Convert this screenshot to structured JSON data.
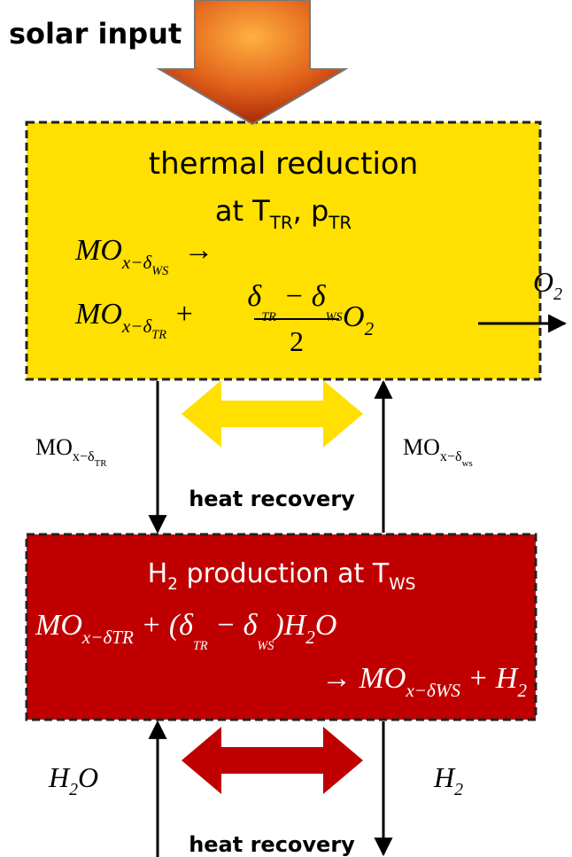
{
  "solar_input": "solar input",
  "reduction": {
    "title": "thermal reduction",
    "condition": [
      {
        "text": "at T",
        "level": 0
      },
      {
        "text": "TR",
        "level": 1
      },
      {
        "text": ", p",
        "level": 0
      },
      {
        "text": "TR",
        "level": 1
      }
    ],
    "equation_line1": [
      {
        "text": "MO",
        "level": 0
      },
      {
        "text": "x−δ",
        "level": 1
      },
      {
        "text": "WS",
        "level": 2
      },
      {
        "text": "  →",
        "level": 0
      }
    ],
    "equation_line2": [
      {
        "text": "MO",
        "level": 0
      },
      {
        "text": "x−δ",
        "level": 1
      },
      {
        "text": "TR",
        "level": 2
      },
      {
        "text": " +",
        "level": 0
      }
    ],
    "fraction_numerator": [
      {
        "text": "δ",
        "level": 0
      },
      {
        "text": "TR",
        "level": 2
      },
      {
        "text": " − δ",
        "level": 0
      },
      {
        "text": "WS",
        "level": 2
      }
    ],
    "fraction_denominator": "2",
    "equation_tail": [
      {
        "text": "O",
        "level": 0
      },
      {
        "text": "2",
        "level": 1
      }
    ]
  },
  "oxygen_output": [
    {
      "text": "O",
      "level": 0
    },
    {
      "text": "2",
      "level": 1
    }
  ],
  "left_transfer": [
    {
      "text": "MO",
      "level": 0
    },
    {
      "text": "x−δ",
      "level": 1
    },
    {
      "text": "TR",
      "level": 2
    }
  ],
  "right_transfer": [
    {
      "text": "MO",
      "level": 0
    },
    {
      "text": "x−δ",
      "level": 1
    },
    {
      "text": "ws",
      "level": 2
    }
  ],
  "heat_recovery_top": "heat recovery",
  "production": {
    "title": [
      {
        "text": "H",
        "level": 0
      },
      {
        "text": "2",
        "level": 1
      },
      {
        "text": " production at T",
        "level": 0
      },
      {
        "text": "WS",
        "level": 1
      }
    ],
    "equation_line1": [
      {
        "text": "MO",
        "level": 0
      },
      {
        "text": "x−δ",
        "level": 1
      },
      {
        "text": "TR",
        "level": 1
      },
      {
        "text": " + (δ",
        "level": 0
      },
      {
        "text": "TR",
        "level": 2
      },
      {
        "text": " − δ",
        "level": 0
      },
      {
        "text": "WS",
        "level": 2
      },
      {
        "text": ")H",
        "level": 0
      },
      {
        "text": "2",
        "level": 1
      },
      {
        "text": "O",
        "level": 0
      }
    ],
    "equation_line2": [
      {
        "text": "→ MO",
        "level": 0
      },
      {
        "text": "x−δ",
        "level": 1
      },
      {
        "text": "WS",
        "level": 1
      },
      {
        "text": " + H",
        "level": 0
      },
      {
        "text": "2",
        "level": 1
      }
    ]
  },
  "water_input": [
    {
      "text": "H",
      "level": 0
    },
    {
      "text": "2",
      "level": 1
    },
    {
      "text": "O",
      "level": 0
    }
  ],
  "hydrogen_output": [
    {
      "text": "H",
      "level": 0
    },
    {
      "text": "2",
      "level": 1
    }
  ],
  "heat_recovery_bottom": "heat recovery"
}
